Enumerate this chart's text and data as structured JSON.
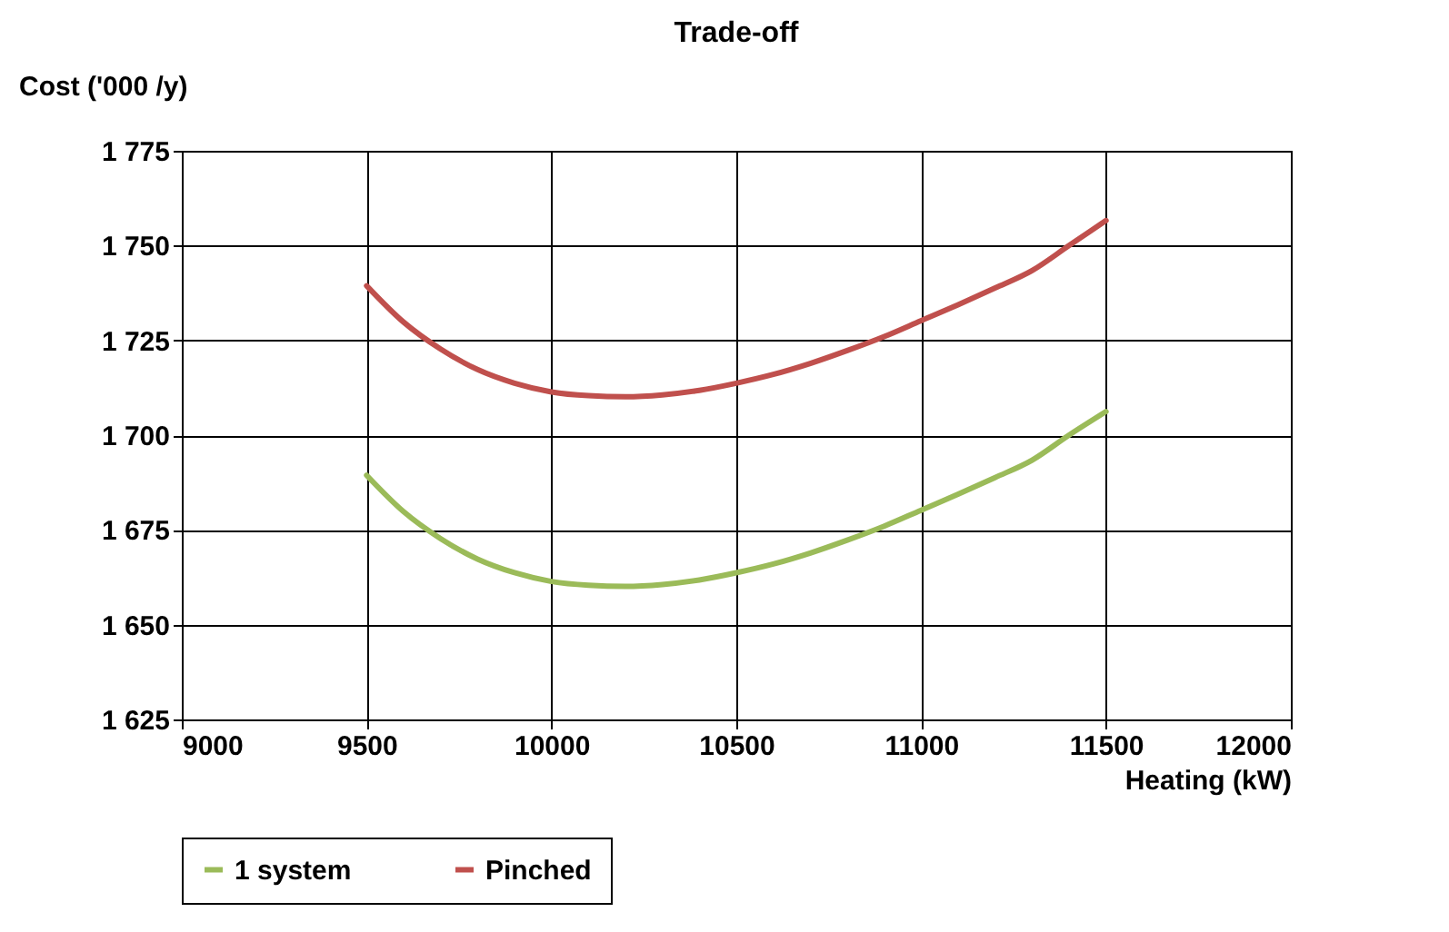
{
  "chart_data": {
    "type": "line",
    "title": "Trade-off",
    "xlabel": "Heating (kW)",
    "ylabel": "Cost ('000 /y)",
    "x": [
      9500,
      9600,
      9700,
      9800,
      9900,
      10000,
      10100,
      10200,
      10300,
      10400,
      10500,
      10600,
      10700,
      10800,
      10900,
      11000,
      11100,
      11200,
      11300,
      11400,
      11500
    ],
    "series": [
      {
        "name": "1 system",
        "color": "#9bbb59",
        "values": [
          1689.4,
          1679.8,
          1672.7,
          1667.3,
          1663.7,
          1661.4,
          1660.4,
          1660.1,
          1660.6,
          1661.8,
          1663.7,
          1666,
          1668.9,
          1672.3,
          1676,
          1680.2,
          1684.4,
          1688.8,
          1693.4,
          1700,
          1706.2
        ]
      },
      {
        "name": "Pinched",
        "color": "#c0504d",
        "values": [
          1739.4,
          1729.8,
          1722.7,
          1717.3,
          1713.7,
          1711.4,
          1710.4,
          1710.1,
          1710.6,
          1711.8,
          1713.7,
          1716,
          1718.9,
          1722.3,
          1726,
          1730.2,
          1734.4,
          1738.8,
          1743.4,
          1750,
          1756.6
        ]
      }
    ],
    "xlim": [
      9000,
      12000
    ],
    "xticks": [
      9000,
      9500,
      10000,
      10500,
      11000,
      11500,
      12000
    ],
    "ylim": [
      1625,
      1775
    ],
    "yticks": [
      {
        "value": 1625,
        "label": "1 625"
      },
      {
        "value": 1650,
        "label": "1 650"
      },
      {
        "value": 1675,
        "label": "1 675"
      },
      {
        "value": 1700,
        "label": "1 700"
      },
      {
        "value": 1725,
        "label": "1 725"
      },
      {
        "value": 1750,
        "label": "1 750"
      },
      {
        "value": 1775,
        "label": "1 775"
      }
    ],
    "grid": true,
    "legend": "bottom",
    "line_style": "solid"
  }
}
